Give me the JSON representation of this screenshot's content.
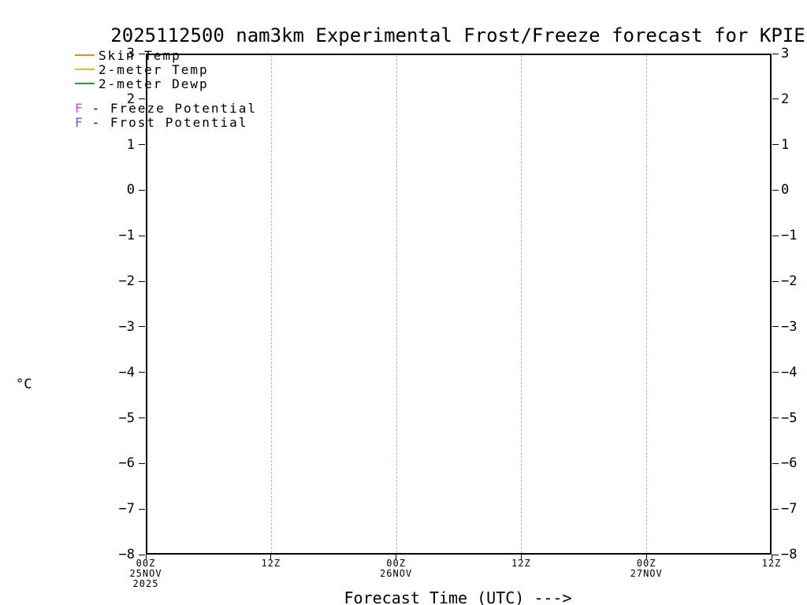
{
  "chart_data": {
    "type": "line",
    "title": "2025112500 nam3km Experimental Frost/Freeze forecast for KPIE",
    "xlabel": "Forecast Time (UTC) --->",
    "ylabel": "°C",
    "ylim": [
      -8,
      3
    ],
    "yticks": [
      3,
      2,
      1,
      0,
      -1,
      -2,
      -3,
      -4,
      -5,
      -6,
      -7,
      -8
    ],
    "grid": "vertical dashed gridlines at 12-hour intervals",
    "legend_position": "top-left inside plot",
    "xticks": [
      {
        "label": "00Z",
        "sub": [
          "25NOV",
          "2025"
        ]
      },
      {
        "label": "12Z",
        "sub": []
      },
      {
        "label": "00Z",
        "sub": [
          "26NOV"
        ]
      },
      {
        "label": "12Z",
        "sub": []
      },
      {
        "label": "00Z",
        "sub": [
          "27NOV"
        ]
      },
      {
        "label": "12Z",
        "sub": []
      }
    ],
    "series": [
      {
        "label": "Skin Temp",
        "color": "#f08a1e",
        "values": []
      },
      {
        "label": "2-meter Temp",
        "color": "#ddc414",
        "values": []
      },
      {
        "label": "2-meter Dewp",
        "color": "#1ea03c",
        "values": []
      }
    ],
    "flags": [
      {
        "symbol": "F",
        "label": "- Freeze Potential",
        "color": "#e83ce8"
      },
      {
        "symbol": "F",
        "label": "- Frost Potential",
        "color": "#5a5aff"
      }
    ]
  },
  "axis_colors": {
    "frame": "#000000",
    "grid": "#b4b4b4"
  }
}
